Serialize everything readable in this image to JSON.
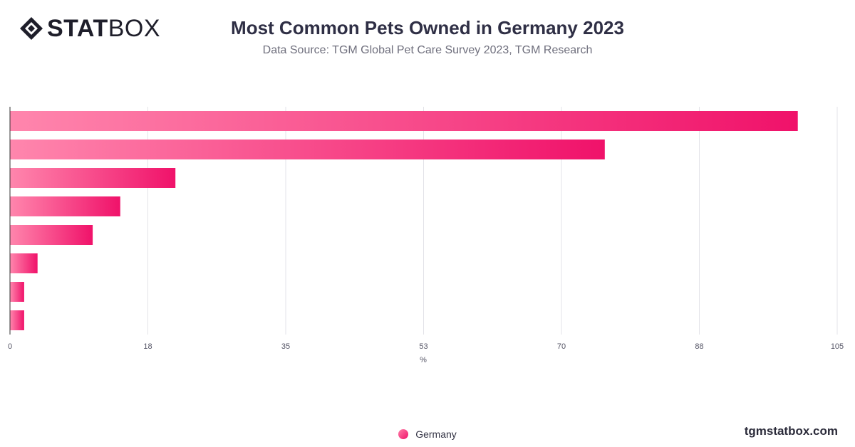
{
  "brand": {
    "logo_bold": "STAT",
    "logo_thin": "BOX",
    "footer": "tgmstatbox.com"
  },
  "header": {
    "title": "Most Common Pets Owned in Germany 2023",
    "subtitle": "Data Source: TGM Global Pet Care Survey 2023, TGM Research"
  },
  "colors": {
    "bar_start": "#ff86ad",
    "bar_end": "#f0126a",
    "grid": "#e3e3e8",
    "axis": "#333333"
  },
  "chart_data": {
    "type": "bar",
    "orientation": "horizontal",
    "categories": [
      "",
      "",
      "",
      "",
      "",
      "",
      "",
      ""
    ],
    "series": [
      {
        "name": "Germany",
        "values": [
          100,
          75.5,
          21,
          14,
          10.5,
          3.5,
          1.8,
          1.8
        ]
      }
    ],
    "xlabel": "%",
    "xlim": [
      0,
      105
    ],
    "xticks": [
      "0",
      "18",
      "35",
      "53",
      "70",
      "88",
      "105"
    ],
    "grid": true,
    "legend": "bottom-center"
  }
}
